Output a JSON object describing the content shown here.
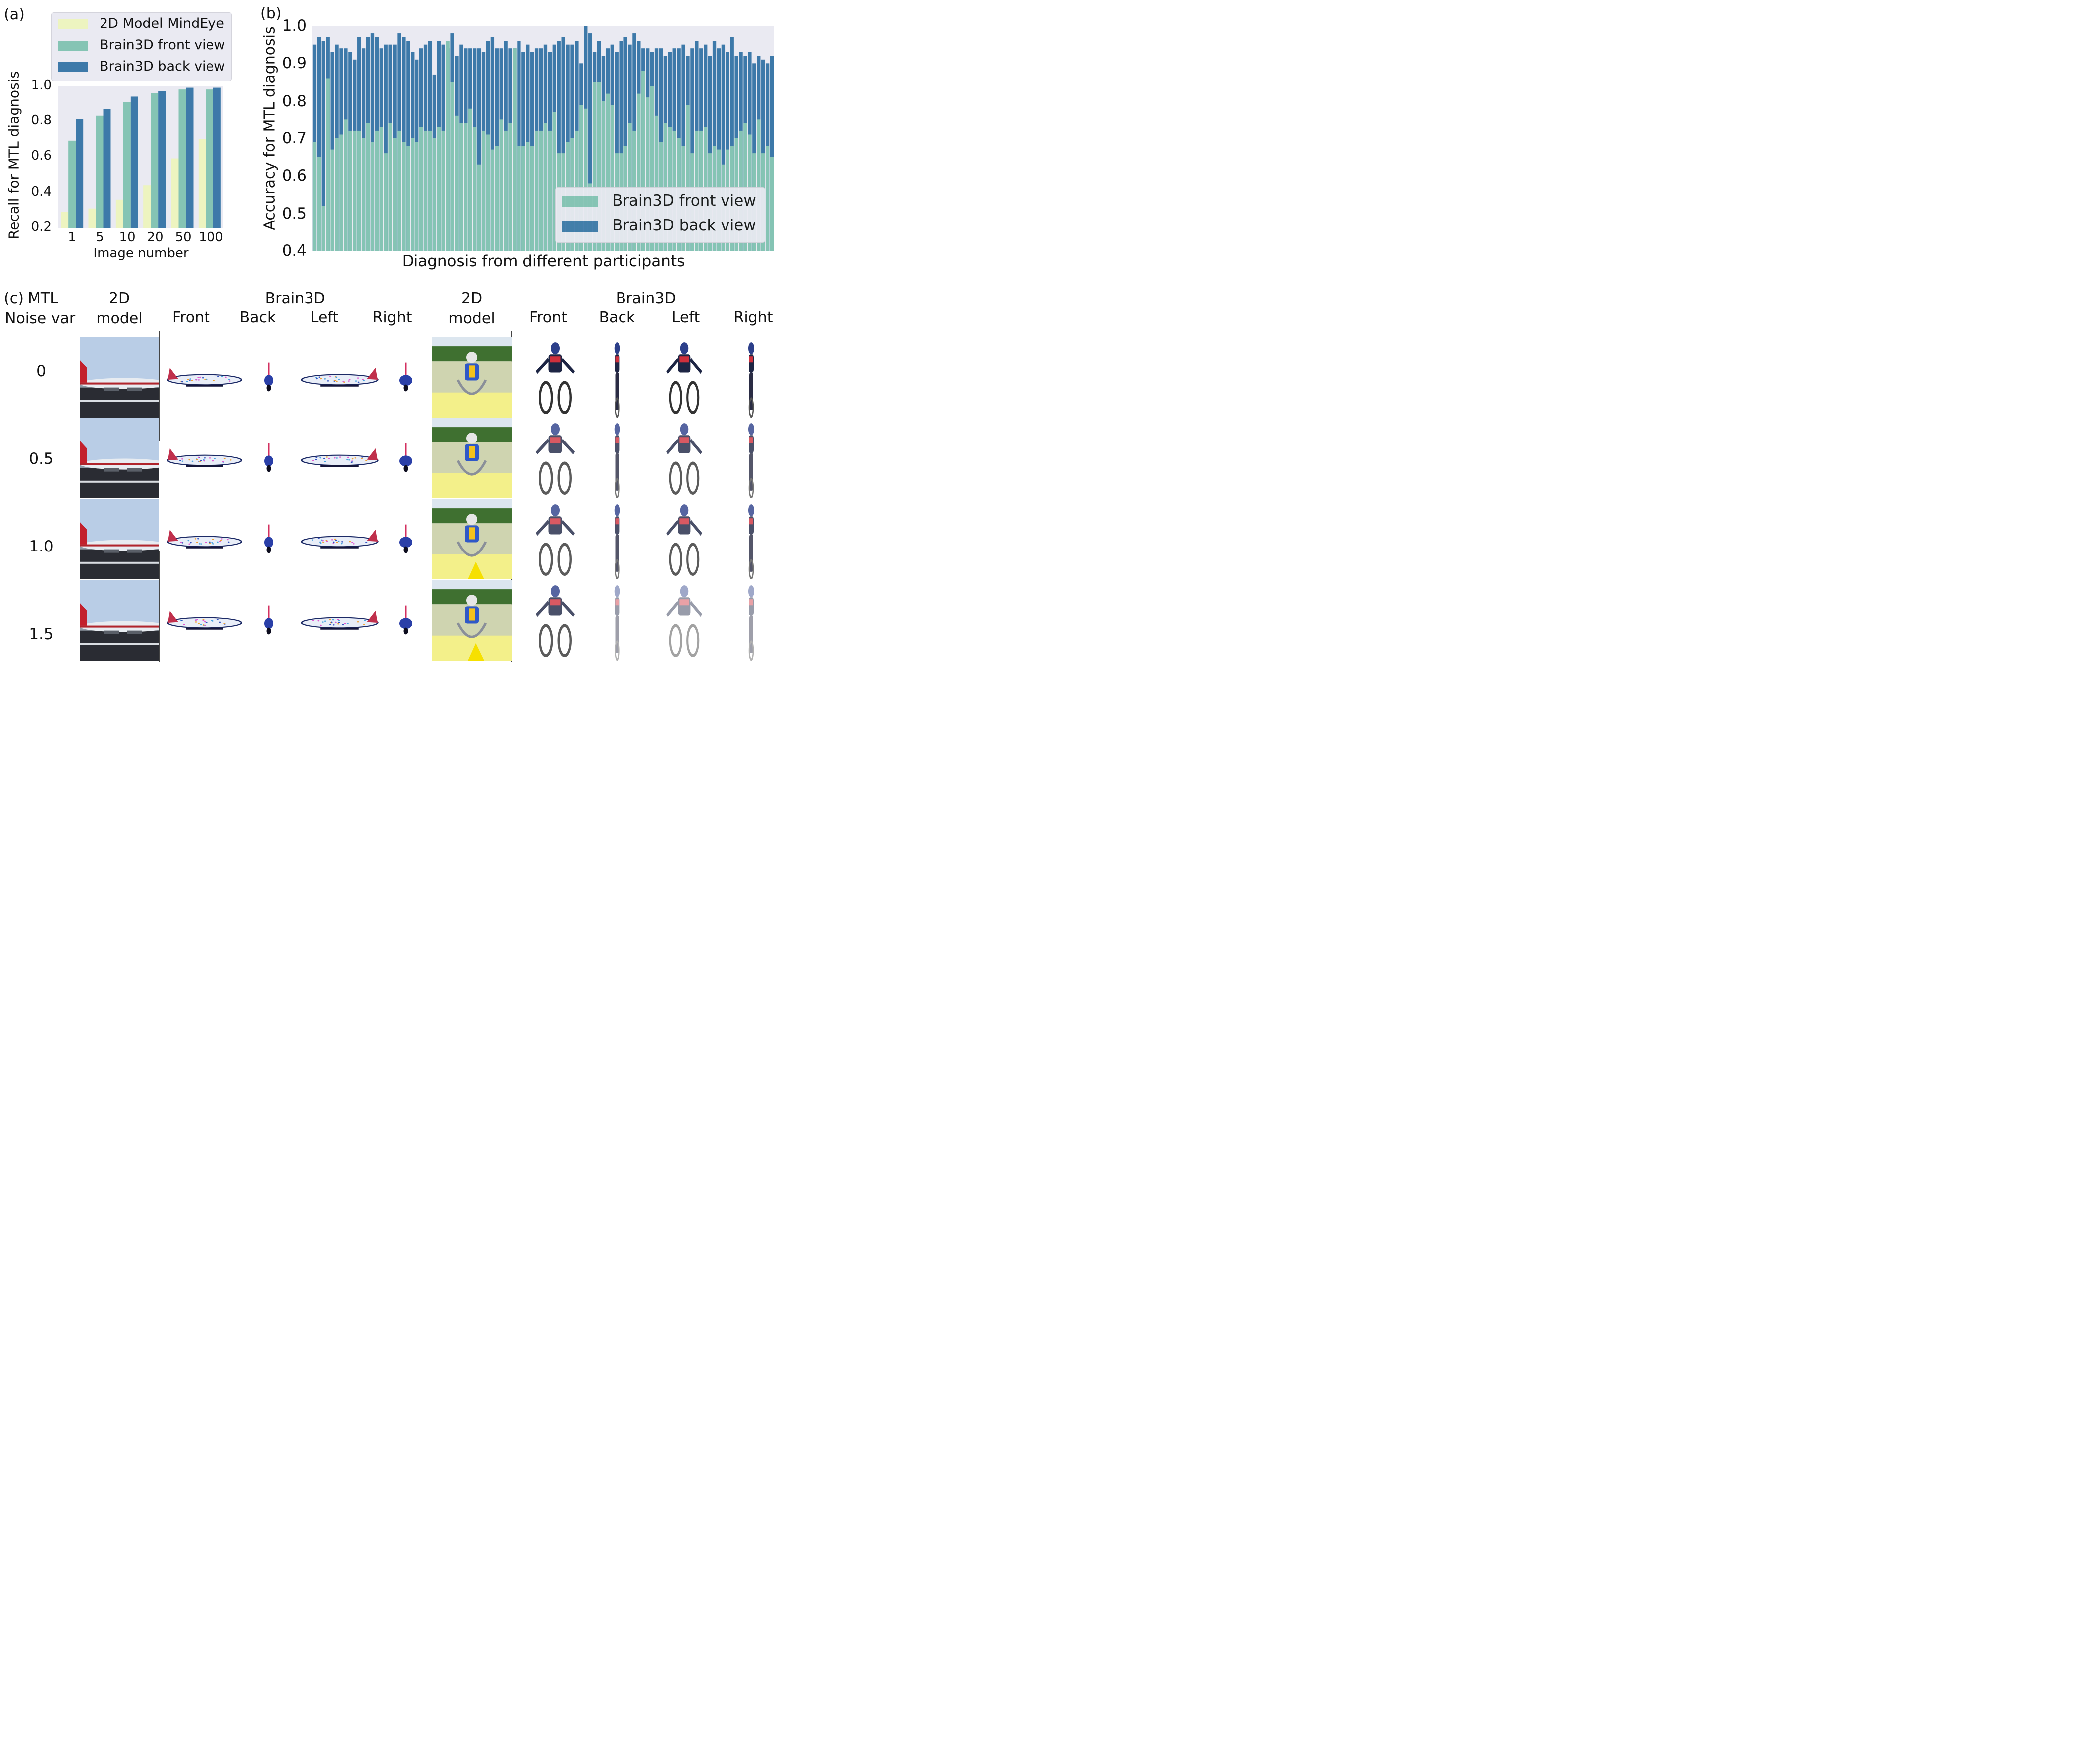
{
  "panels": {
    "a_label": "(a)",
    "b_label": "(b)",
    "c_label": "(c)"
  },
  "chart_data": [
    {
      "type": "bar",
      "panel": "a",
      "xlabel": "Image number",
      "ylabel": "Recall for MTL diagnosis",
      "categories": [
        "1",
        "5",
        "10",
        "20",
        "50",
        "100"
      ],
      "ylim": [
        0.2,
        1.0
      ],
      "yticks": [
        "0.2",
        "0.4",
        "0.6",
        "0.8",
        "1.0"
      ],
      "grid": false,
      "legend": "top",
      "series": [
        {
          "name": "2D Model MindEye",
          "color": "#edf4c0",
          "values": [
            0.29,
            0.31,
            0.36,
            0.44,
            0.59,
            0.7
          ]
        },
        {
          "name": "Brain3D front view",
          "color": "#85c4b4",
          "values": [
            0.69,
            0.83,
            0.91,
            0.96,
            0.98,
            0.98
          ]
        },
        {
          "name": "Brain3D back view",
          "color": "#3d79a9",
          "values": [
            0.81,
            0.87,
            0.94,
            0.97,
            0.99,
            0.99
          ]
        }
      ]
    },
    {
      "type": "bar",
      "panel": "b",
      "xlabel": "Diagnosis from different participants",
      "ylabel": "Accuracy for MTL diagnosis",
      "ylim": [
        0.4,
        1.0
      ],
      "yticks": [
        "0.4",
        "0.5",
        "0.6",
        "0.7",
        "0.8",
        "0.9",
        "1.0"
      ],
      "legend": "bottom-right",
      "series": [
        {
          "name": "Brain3D front view",
          "color": "#85c4b4",
          "values": [
            0.69,
            0.65,
            0.52,
            0.86,
            0.67,
            0.7,
            0.71,
            0.75,
            0.72,
            0.72,
            0.72,
            0.7,
            0.74,
            0.69,
            0.72,
            0.73,
            0.66,
            0.74,
            0.7,
            0.72,
            0.69,
            0.68,
            0.7,
            0.69,
            0.73,
            0.72,
            0.72,
            0.7,
            0.73,
            0.72,
            0.96,
            0.85,
            0.76,
            0.74,
            0.74,
            0.78,
            0.73,
            0.63,
            0.72,
            0.71,
            0.67,
            0.68,
            0.75,
            0.72,
            0.74,
            0.94,
            0.68,
            0.68,
            0.69,
            0.68,
            0.72,
            0.72,
            0.74,
            0.72,
            0.77,
            0.66,
            0.66,
            0.69,
            0.7,
            0.72,
            0.79,
            0.78,
            0.58,
            0.85,
            0.85,
            0.8,
            0.82,
            0.79,
            0.66,
            0.66,
            0.68,
            0.74,
            0.72,
            0.82,
            0.88,
            0.81,
            0.84,
            0.76,
            0.69,
            0.74,
            0.73,
            0.72,
            0.7,
            0.68,
            0.79,
            0.66,
            0.72,
            0.72,
            0.73,
            0.66,
            0.68,
            0.67,
            0.63,
            0.67,
            0.68,
            0.7,
            0.72,
            0.74,
            0.71,
            0.66,
            0.75,
            0.66,
            0.68,
            0.65
          ]
        },
        {
          "name": "Brain3D back view",
          "color": "#3d79a9",
          "values": [
            0.95,
            0.97,
            0.96,
            0.97,
            0.93,
            0.95,
            0.94,
            0.94,
            0.93,
            0.91,
            0.97,
            0.94,
            0.97,
            0.98,
            0.97,
            0.94,
            0.95,
            0.95,
            0.95,
            0.98,
            0.97,
            0.96,
            0.93,
            0.91,
            0.94,
            0.95,
            0.96,
            0.87,
            0.96,
            0.95,
            0.94,
            0.98,
            0.92,
            0.95,
            0.94,
            0.94,
            0.94,
            0.94,
            0.93,
            0.96,
            0.97,
            0.94,
            0.94,
            0.96,
            0.94,
            0.94,
            0.96,
            0.93,
            0.95,
            0.93,
            0.94,
            0.94,
            0.95,
            0.93,
            0.95,
            0.96,
            0.97,
            0.95,
            0.95,
            0.96,
            0.9,
            1.0,
            0.98,
            0.93,
            0.96,
            0.92,
            0.94,
            0.95,
            0.93,
            0.96,
            0.97,
            0.95,
            0.98,
            0.96,
            0.94,
            0.94,
            0.93,
            0.94,
            0.94,
            0.92,
            0.93,
            0.94,
            0.94,
            0.95,
            0.92,
            0.94,
            0.96,
            0.94,
            0.95,
            0.92,
            0.96,
            0.94,
            0.95,
            0.93,
            0.97,
            0.92,
            0.93,
            0.92,
            0.93,
            0.9,
            0.92,
            0.91,
            0.9,
            0.92
          ]
        }
      ]
    }
  ],
  "panel_c": {
    "row_header_line1": "MTL",
    "row_header_line2": "Noise var",
    "col_2d_line1": "2D",
    "col_2d_line2": "model",
    "col_brain3d": "Brain3D",
    "views": [
      "Front",
      "Back",
      "Left",
      "Right"
    ],
    "noise_levels": [
      "0",
      "0.5",
      "1.0",
      "1.5"
    ]
  }
}
